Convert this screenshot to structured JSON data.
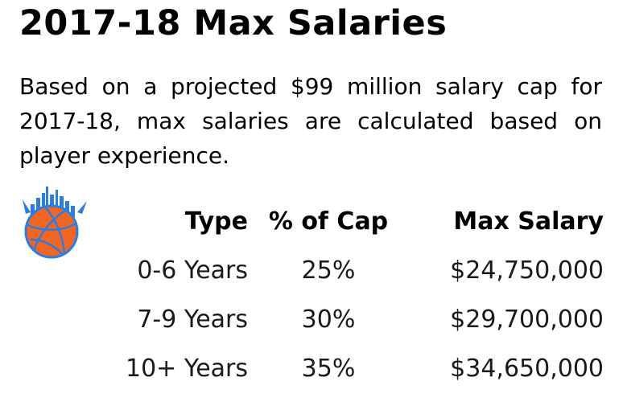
{
  "title": "2017-18 Max Salaries",
  "intro": "Based on a projected $99 million salary cap for 2017-18, max salaries are calculated based on player experience.",
  "logo_icon": "basketball-skyline-logo-icon",
  "colors": {
    "ball": "#f26522",
    "accent": "#2a7de1"
  },
  "table": {
    "headers": [
      "Type",
      "% of Cap",
      "Max Salary"
    ],
    "rows": [
      {
        "type": "0-6 Years",
        "pct": "25%",
        "max": "$24,750,000"
      },
      {
        "type": "7-9 Years",
        "pct": "30%",
        "max": "$29,700,000"
      },
      {
        "type": "10+ Years",
        "pct": "35%",
        "max": "$34,650,000"
      }
    ]
  }
}
